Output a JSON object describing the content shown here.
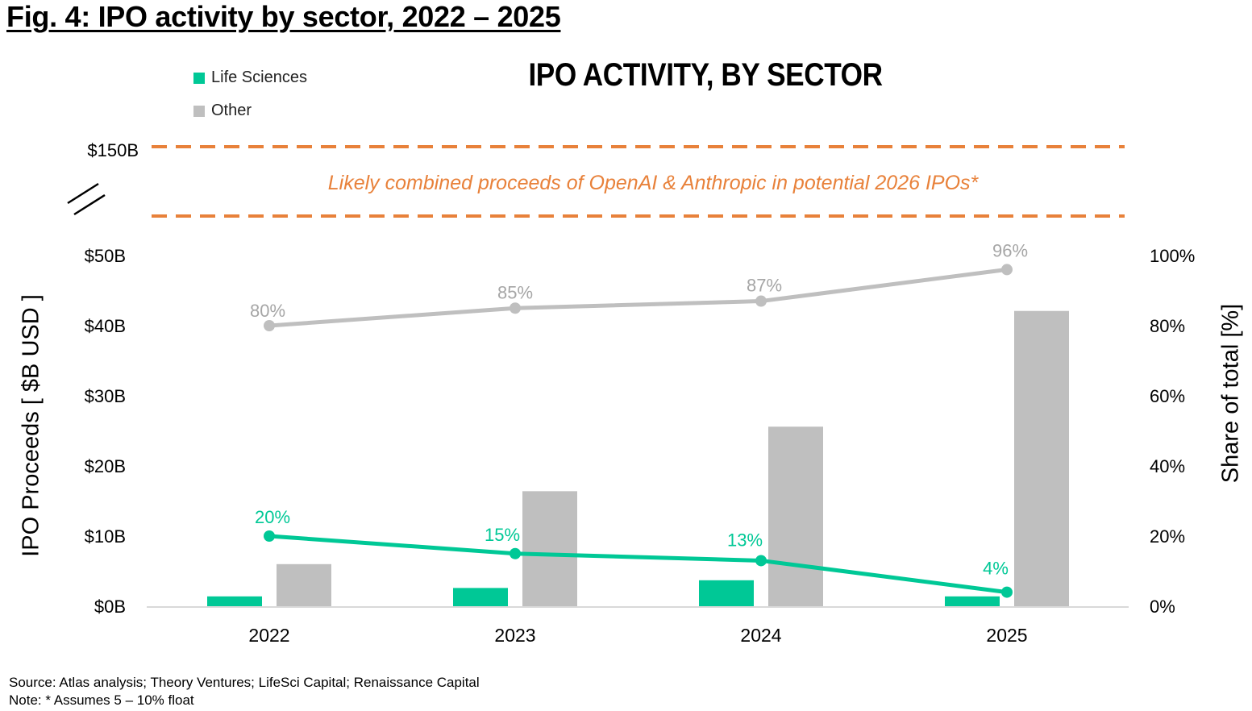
{
  "figure": {
    "title": "Fig. 4: IPO activity by sector, 2022 – 2025",
    "source": "Source: Atlas analysis; Theory Ventures; LifeSci Capital; Renaissance Capital",
    "note": "Note: * Assumes 5 – 10% float"
  },
  "colors": {
    "life_sciences": "#00C896",
    "other": "#BFBFBF",
    "other_line": "#BFBFBF",
    "other_label": "#A6A6A6",
    "annotation": "#E8813A",
    "axis": "#D9D9D9"
  },
  "chart_data": {
    "type": "bar",
    "title": "IPO ACTIVITY, BY SECTOR",
    "categories": [
      "2022",
      "2023",
      "2024",
      "2025"
    ],
    "series": [
      {
        "name": "Life Sciences",
        "type": "bar",
        "axis": "left",
        "values": [
          1.4,
          2.6,
          3.7,
          1.4
        ]
      },
      {
        "name": "Other",
        "type": "bar",
        "axis": "left",
        "values": [
          6.0,
          16.4,
          25.6,
          42.1
        ]
      },
      {
        "name": "Life Sciences share",
        "type": "line",
        "axis": "right",
        "values": [
          20,
          15,
          13,
          4
        ],
        "labels": [
          "20%",
          "15%",
          "13%",
          "4%"
        ]
      },
      {
        "name": "Other share",
        "type": "line",
        "axis": "right",
        "values": [
          80,
          85,
          87,
          96
        ],
        "labels": [
          "80%",
          "85%",
          "87%",
          "96%"
        ]
      }
    ],
    "legend": {
      "position": "top-left",
      "entries": [
        "Life Sciences",
        "Other"
      ]
    },
    "ylabel": "IPO Proceeds [ $B USD ]",
    "y2label": "Share of total [%]",
    "xlabel": "",
    "ylim": [
      0,
      50
    ],
    "y2lim": [
      0,
      100
    ],
    "yticks": [
      "$0B",
      "$10B",
      "$20B",
      "$30B",
      "$40B",
      "$50B"
    ],
    "y2ticks": [
      "0%",
      "20%",
      "40%",
      "60%",
      "80%",
      "100%"
    ],
    "axis_break": {
      "upper_tick": "$150B",
      "upper_value": 150
    },
    "annotation": {
      "text": "Likely combined proceeds of OpenAI & Anthropic in potential 2026 IPOs*",
      "band": "dashed range near $150B (above axis break)"
    },
    "grid": false
  }
}
